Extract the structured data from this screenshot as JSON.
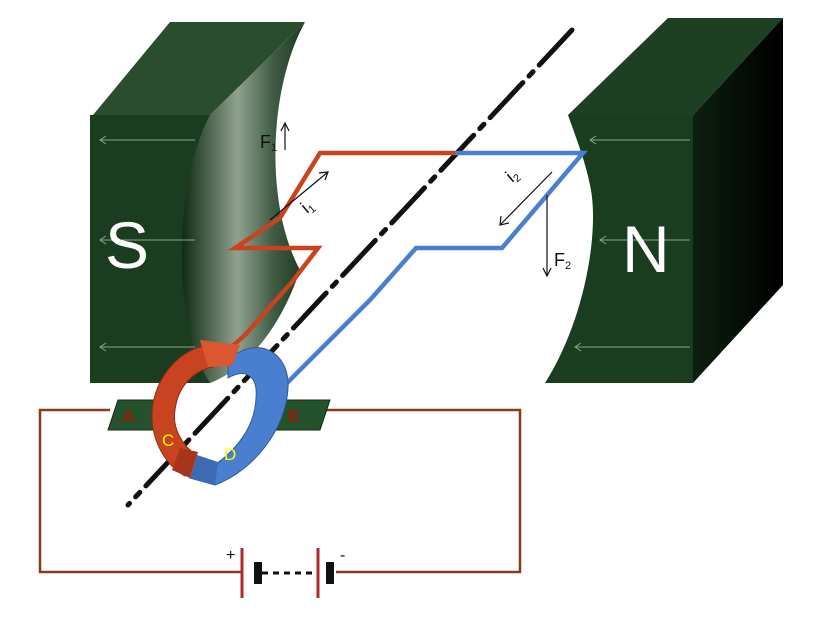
{
  "magnets": {
    "left_label": "S",
    "right_label": "N",
    "color": "#1a3d1f"
  },
  "forces": {
    "f1": "F",
    "f1_sub": "1",
    "f2": "F",
    "f2_sub": "2"
  },
  "currents": {
    "i1": "i",
    "i1_sub": "1",
    "i2": "i",
    "i2_sub": "2"
  },
  "brushes": {
    "a_label": "A",
    "b_label": "B",
    "label_color": "#cc0000"
  },
  "commutator": {
    "c_label": "C",
    "d_label": "D",
    "label_color": "#ffff00",
    "c_color": "#c8431f",
    "d_color": "#4a7fd0"
  },
  "battery": {
    "plus": "+",
    "minus": "-"
  },
  "colors": {
    "coil_red": "#c8431f",
    "coil_blue": "#4a7fd0",
    "circuit_wire": "#8b3a1a",
    "axis": "#111111"
  }
}
